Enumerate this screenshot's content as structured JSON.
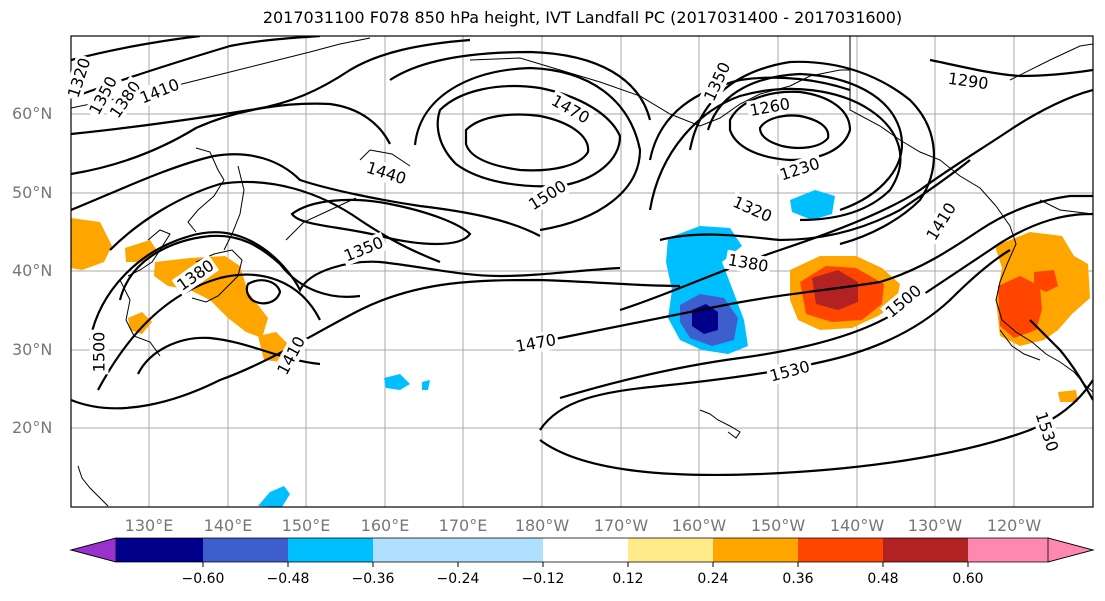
{
  "title": "2017031100 F078 850 hPa height, IVT Landfall PC (2017031400 - 2017031600)",
  "lat_labels": [
    "60°N",
    "50°N",
    "40°N",
    "30°N",
    "20°N"
  ],
  "lon_labels": [
    "130°E",
    "140°E",
    "150°E",
    "160°E",
    "170°E",
    "180°W",
    "170°W",
    "160°W",
    "150°W",
    "140°W",
    "130°W",
    "120°W"
  ],
  "contour_labels": [
    "1320",
    "1350",
    "1380",
    "1410",
    "1470",
    "1350",
    "1290",
    "1260",
    "1230",
    "1440",
    "1500",
    "1350",
    "1320",
    "1380",
    "1410",
    "1380",
    "1410",
    "1470",
    "1500",
    "1530",
    "1500",
    "1530"
  ],
  "colorbar": {
    "colors": [
      "#9932cc",
      "#00008b",
      "#3c5fcd",
      "#00bfff",
      "#b0e0ff",
      "#ffffff",
      "#ffeb8a",
      "#ffa500",
      "#ff4500",
      "#b22222",
      "#ff88b0"
    ],
    "ticks": [
      "−0.60",
      "−0.48",
      "−0.36",
      "−0.24",
      "−0.12",
      "0.12",
      "0.24",
      "0.36",
      "0.48",
      "0.60"
    ]
  }
}
